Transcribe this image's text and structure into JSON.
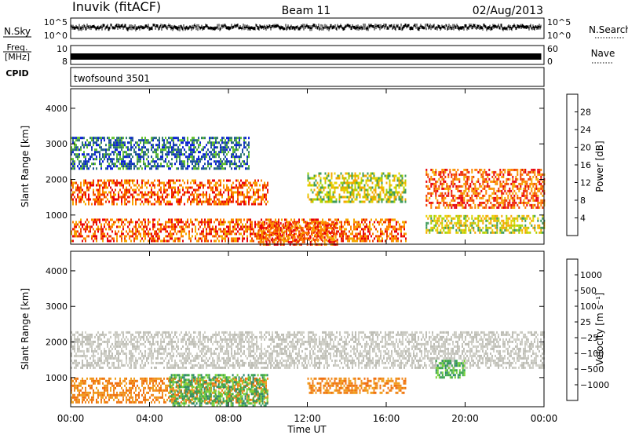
{
  "header": {
    "station": "Inuvik (fitACF)",
    "beam": "Beam 11",
    "date": "02/Aug/2013"
  },
  "params": {
    "nsky_label": "N.Sky",
    "nsky_ticks": [
      "10^5",
      "10^0"
    ],
    "nsearch_label": "N.Search",
    "nsearch_ticks": [
      "10^5",
      "10^0"
    ],
    "freq_label_1": "Freq.",
    "freq_label_2": "[MHz]",
    "freq_ticks": [
      "10",
      "8"
    ],
    "nave_label": "Nave",
    "nave_ticks": [
      "60",
      "0"
    ],
    "cpid_label": "CPID",
    "cpid_value": "twofsound 3501"
  },
  "chart_data": [
    {
      "type": "heatmap",
      "name": "power",
      "ylabel": "Slant Range [km]",
      "yticks": [
        "4000",
        "3000",
        "2000",
        "1000"
      ],
      "ylim": [
        180,
        4550
      ],
      "colorbar_label": "Power [dB]",
      "colorbar_ticks": [
        "28",
        "24",
        "20",
        "16",
        "12",
        "8",
        "4"
      ],
      "colorbar_colors": [
        "#e8000b",
        "#f03c00",
        "#ff7f00",
        "#f5a800",
        "#e6d200",
        "#a8d400",
        "#5fbf2a",
        "#3c9b5a",
        "#2e7a6e",
        "#1f4fa0",
        "#0a1fd8"
      ],
      "echo_bands": [
        {
          "start_h": 0.0,
          "end_h": 17.0,
          "range_km": [
            300,
            900
          ],
          "level": "high"
        },
        {
          "start_h": 0.0,
          "end_h": 10.0,
          "range_km": [
            1300,
            2000
          ],
          "level": "high"
        },
        {
          "start_h": 9.5,
          "end_h": 13.5,
          "range_km": [
            200,
            800
          ],
          "level": "high"
        },
        {
          "start_h": 12.0,
          "end_h": 17.0,
          "range_km": [
            1400,
            2200
          ],
          "level": "medium"
        },
        {
          "start_h": 18.0,
          "end_h": 24.0,
          "range_km": [
            1200,
            2300
          ],
          "level": "high"
        },
        {
          "start_h": 18.0,
          "end_h": 24.0,
          "range_km": [
            500,
            1000
          ],
          "level": "medium"
        },
        {
          "start_h": 0.0,
          "end_h": 9.0,
          "range_km": [
            2300,
            3200
          ],
          "level": "low"
        }
      ]
    },
    {
      "type": "heatmap",
      "name": "velocity",
      "ylabel": "Slant Range [km]",
      "yticks": [
        "4000",
        "3000",
        "2000",
        "1000"
      ],
      "ylim": [
        180,
        4550
      ],
      "colorbar_label": "Velocity [m s⁻¹]",
      "colorbar_ticks": [
        "1000",
        "500",
        "100",
        "25",
        "−25",
        "−100",
        "−500",
        "−1000"
      ],
      "colorbar_colors": [
        "#1a3fb0",
        "#2a6aa8",
        "#2f8a6a",
        "#3aa64a",
        "#7ad23a",
        "#c8c8c0",
        "#c0c0b8",
        "#f0a020",
        "#f07010",
        "#f04010",
        "#e00010"
      ],
      "echo_bands": [
        {
          "start_h": 0.0,
          "end_h": 24.0,
          "range_km": [
            1300,
            2300
          ],
          "level": "gray"
        },
        {
          "start_h": 0.0,
          "end_h": 10.0,
          "range_km": [
            300,
            1000
          ],
          "level": "orange"
        },
        {
          "start_h": 5.0,
          "end_h": 10.0,
          "range_km": [
            200,
            1100
          ],
          "level": "green"
        },
        {
          "start_h": 12.0,
          "end_h": 17.0,
          "range_km": [
            600,
            1000
          ],
          "level": "orange"
        },
        {
          "start_h": 18.5,
          "end_h": 20.0,
          "range_km": [
            1000,
            1500
          ],
          "level": "green"
        }
      ]
    }
  ],
  "xaxis": {
    "label": "Time UT",
    "ticks": [
      "00:00",
      "04:00",
      "08:00",
      "12:00",
      "16:00",
      "20:00",
      "00:00"
    ],
    "xlim_hours": [
      0,
      24
    ]
  }
}
